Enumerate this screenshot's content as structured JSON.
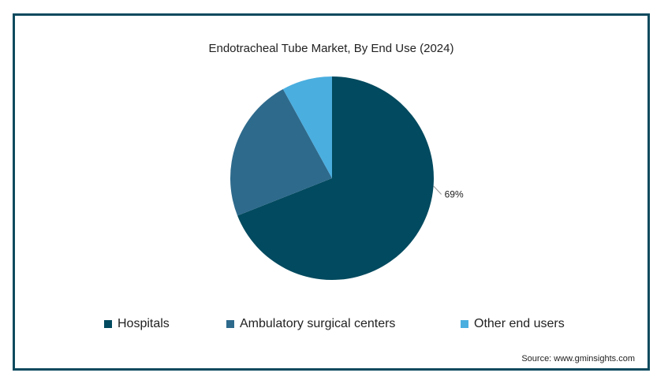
{
  "chart_data": {
    "type": "pie",
    "title": "Endotracheal Tube Market, By End Use (2024)",
    "categories": [
      "Hospitals",
      "Ambulatory surgical centers",
      "Other end users"
    ],
    "values": [
      69,
      23,
      8
    ],
    "colors": [
      "#024a5f",
      "#2e6a8c",
      "#4aaedf"
    ],
    "data_labels": [
      "69%",
      "",
      ""
    ],
    "legend_position": "bottom"
  },
  "source": "Source: www.gminsights.com"
}
